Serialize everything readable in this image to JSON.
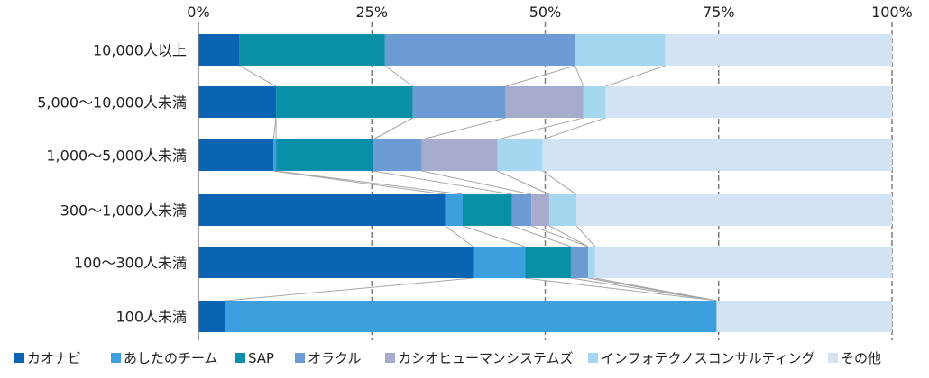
{
  "chart_data": {
    "type": "bar",
    "orientation": "horizontal",
    "stacked": true,
    "percent_stacked": true,
    "title": "",
    "xlabel": "",
    "ylabel": "",
    "xlim": [
      0,
      100
    ],
    "x_ticks": [
      0,
      25,
      50,
      75,
      100
    ],
    "x_tick_labels": [
      "0%",
      "25%",
      "50%",
      "75%",
      "100%"
    ],
    "grid": "vertical-dashed",
    "legend_position": "bottom",
    "series_connector_lines": true,
    "categories": [
      "10,000人以上",
      "5,000～10,000人未満",
      "1,000～5,000人未満",
      "300～1,000人未満",
      "100～300人未満",
      "100人未満"
    ],
    "series": [
      {
        "name": "カオナビ",
        "color": "#0B63B4",
        "values": [
          5.9,
          11.2,
          10.8,
          35.6,
          39.6,
          3.9
        ]
      },
      {
        "name": "あしたのチーム",
        "color": "#3BA0DD",
        "values": [
          0.0,
          0.0,
          0.4,
          2.5,
          7.5,
          70.8
        ]
      },
      {
        "name": "SAP",
        "color": "#0A8FA8",
        "values": [
          21.0,
          19.7,
          14.0,
          7.1,
          6.6,
          0.0
        ]
      },
      {
        "name": "オラクル",
        "color": "#6C9CD3",
        "values": [
          27.4,
          13.4,
          7.0,
          2.8,
          2.5,
          0.0
        ]
      },
      {
        "name": "カシオヒューマンシステムズ",
        "color": "#A7ACCC",
        "values": [
          0.0,
          11.2,
          10.9,
          2.6,
          0.0,
          0.0
        ]
      },
      {
        "name": "インフォテクノスコンサルティング",
        "color": "#A6D7F1",
        "values": [
          13.0,
          3.2,
          6.5,
          3.9,
          1.0,
          0.0
        ]
      },
      {
        "name": "その他",
        "color": "#D2E3F4",
        "values": [
          32.7,
          41.3,
          50.4,
          45.5,
          42.8,
          25.3
        ]
      }
    ]
  }
}
